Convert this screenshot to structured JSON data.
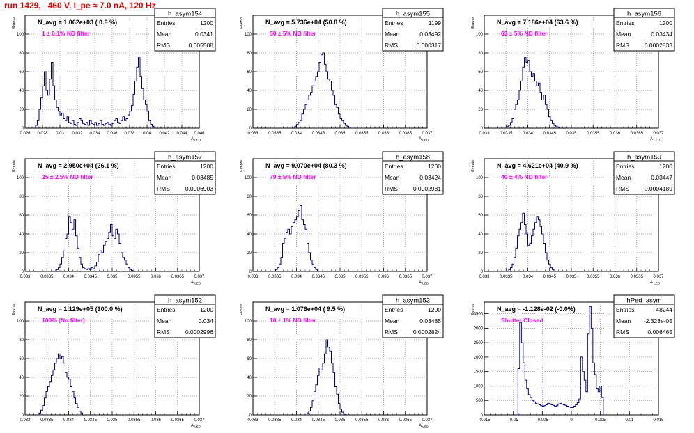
{
  "run_title": "run 1429,   460 V, I_pe ≈ 7.0 nA, 120 Hz",
  "stat_labels": {
    "entries": "Entries",
    "mean": "Mean",
    "rms": "RMS"
  },
  "chart_data": [
    {
      "type": "histogram",
      "name": "h_asym154",
      "navg_label": "N_avg = 1.062e+03 ( 0.9 %)",
      "annotation": "1 ± 0.1% ND filter",
      "entries": "1200",
      "mean": "0.0341",
      "rms": "0.005508",
      "xlabel": "A_LED",
      "ylabel": "Events",
      "xlim": [
        0.026,
        0.046
      ],
      "ylim": [
        0,
        120
      ],
      "xticks": [
        0.026,
        0.028,
        0.03,
        0.032,
        0.034,
        0.036,
        0.038,
        0.04,
        0.042,
        0.044,
        0.046
      ],
      "xtick_labels": [
        "0.026",
        "0.028",
        "0.03",
        "0.032",
        "0.034",
        "0.036",
        "0.038",
        "0.04",
        "0.042",
        "0.044",
        "0.046"
      ],
      "yticks": [
        0,
        20,
        40,
        60,
        80,
        100
      ],
      "ytick_labels": [
        "0",
        "20",
        "40",
        "60",
        "80",
        "100"
      ],
      "bin_start": 0.0272,
      "bin_width": 0.0002,
      "counts": [
        3,
        8,
        20,
        32,
        45,
        60,
        40,
        35,
        52,
        70,
        45,
        30,
        22,
        18,
        14,
        16,
        10,
        8,
        12,
        6,
        5,
        8,
        4,
        3,
        6,
        10,
        8,
        5,
        4,
        6,
        3,
        8,
        5,
        4,
        6,
        3,
        5,
        8,
        4,
        3,
        5,
        6,
        4,
        3,
        5,
        8,
        10,
        6,
        5,
        8,
        12,
        8,
        10,
        14,
        18,
        24,
        36,
        50,
        65,
        75,
        55,
        42,
        30,
        25,
        18,
        8,
        4,
        2
      ]
    },
    {
      "type": "histogram",
      "name": "h_asym155",
      "navg_label": "N_avg = 5.736e+04 (50.8 %)",
      "annotation": "50 ± 5% ND filter",
      "entries": "1199",
      "mean": "0.03492",
      "rms": "0.000317",
      "xlabel": "A_LED",
      "ylabel": "Events",
      "xlim": [
        0.033,
        0.037
      ],
      "ylim": [
        0,
        120
      ],
      "xticks": [
        0.033,
        0.0335,
        0.034,
        0.0345,
        0.035,
        0.0355,
        0.036,
        0.0365,
        0.037
      ],
      "xtick_labels": [
        "0.033",
        "0.0335",
        "0.034",
        "0.0345",
        "0.035",
        "0.0355",
        "0.036",
        "0.0365",
        "0.037"
      ],
      "yticks": [
        0,
        20,
        40,
        60,
        80,
        100
      ],
      "ytick_labels": [
        "0",
        "20",
        "40",
        "60",
        "80",
        "100"
      ],
      "bin_start": 0.03396,
      "bin_width": 4e-05,
      "counts": [
        2,
        4,
        6,
        8,
        15,
        20,
        25,
        30,
        35,
        38,
        45,
        50,
        55,
        60,
        70,
        78,
        80,
        68,
        60,
        52,
        50,
        40,
        35,
        25,
        22,
        15,
        10,
        8,
        5,
        3,
        2,
        1
      ]
    },
    {
      "type": "histogram",
      "name": "h_asym156",
      "navg_label": "N_avg = 7.186e+04 (63.6 %)",
      "annotation": "63 ± 5% ND filter",
      "entries": "1200",
      "mean": "0.03434",
      "rms": "0.0002833",
      "xlabel": "A_LED",
      "ylabel": "Events",
      "xlim": [
        0.033,
        0.037
      ],
      "ylim": [
        0,
        120
      ],
      "xticks": [
        0.033,
        0.0335,
        0.034,
        0.0345,
        0.035,
        0.0355,
        0.036,
        0.0365,
        0.037
      ],
      "xtick_labels": [
        "0.033",
        "0.0335",
        "0.034",
        "0.0345",
        "0.035",
        "0.0355",
        "0.036",
        "0.0365",
        "0.037"
      ],
      "yticks": [
        0,
        20,
        40,
        60,
        80,
        100
      ],
      "ytick_labels": [
        "0",
        "20",
        "40",
        "60",
        "80",
        "100"
      ],
      "bin_start": 0.03352,
      "bin_width": 4e-05,
      "counts": [
        2,
        3,
        6,
        10,
        20,
        25,
        30,
        40,
        50,
        65,
        75,
        70,
        72,
        60,
        55,
        58,
        50,
        45,
        48,
        38,
        30,
        35,
        25,
        20,
        12,
        8,
        5,
        3,
        2,
        1
      ]
    },
    {
      "type": "histogram",
      "name": "h_asym157",
      "navg_label": "N_avg = 2.950e+04 (26.1 %)",
      "annotation": "25 ± 2.5% ND filter",
      "entries": "1200",
      "mean": "0.03485",
      "rms": "0.0006903",
      "xlabel": "A_LED",
      "ylabel": "Events",
      "xlim": [
        0.033,
        0.037
      ],
      "ylim": [
        0,
        120
      ],
      "xticks": [
        0.033,
        0.0335,
        0.034,
        0.0345,
        0.035,
        0.0355,
        0.036,
        0.0365,
        0.037
      ],
      "xtick_labels": [
        "0.033",
        "0.0335",
        "0.034",
        "0.0345",
        "0.035",
        "0.0355",
        "0.036",
        "0.0365",
        "0.037"
      ],
      "yticks": [
        0,
        20,
        40,
        60,
        80,
        100
      ],
      "ytick_labels": [
        "0",
        "20",
        "40",
        "60",
        "80",
        "100"
      ],
      "bin_start": 0.03372,
      "bin_width": 4e-05,
      "counts": [
        2,
        4,
        8,
        15,
        22,
        35,
        40,
        58,
        52,
        45,
        55,
        38,
        25,
        15,
        8,
        4,
        3,
        2,
        3,
        2,
        4,
        3,
        6,
        10,
        18,
        22,
        20,
        28,
        32,
        35,
        42,
        50,
        38,
        35,
        45,
        40,
        30,
        20,
        15,
        12,
        8,
        4,
        2,
        1
      ]
    },
    {
      "type": "histogram",
      "name": "h_asym158",
      "navg_label": "N_avg = 9.070e+04 (80.3 %)",
      "annotation": "79 ± 5% ND filter",
      "entries": "1200",
      "mean": "0.03424",
      "rms": "0.0002981",
      "xlabel": "A_LED",
      "ylabel": "Events",
      "xlim": [
        0.033,
        0.037
      ],
      "ylim": [
        0,
        120
      ],
      "xticks": [
        0.033,
        0.0335,
        0.034,
        0.0345,
        0.035,
        0.0355,
        0.036,
        0.0365,
        0.037
      ],
      "xtick_labels": [
        "0.033",
        "0.0335",
        "0.034",
        "0.0345",
        "0.035",
        "0.0355",
        "0.036",
        "0.0365",
        "0.037"
      ],
      "yticks": [
        0,
        20,
        40,
        60,
        80,
        100
      ],
      "ytick_labels": [
        "0",
        "20",
        "40",
        "60",
        "80",
        "100"
      ],
      "bin_start": 0.03352,
      "bin_width": 4e-05,
      "counts": [
        2,
        4,
        8,
        15,
        30,
        35,
        42,
        45,
        40,
        48,
        52,
        55,
        58,
        65,
        70,
        55,
        50,
        45,
        30,
        20,
        12,
        8,
        4,
        2
      ]
    },
    {
      "type": "histogram",
      "name": "h_asym159",
      "navg_label": "N_avg = 4.621e+04 (40.9 %)",
      "annotation": "40 ± 4% ND filter",
      "entries": "1200",
      "mean": "0.03447",
      "rms": "0.0004189",
      "xlabel": "A_LED",
      "ylabel": "Events",
      "xlim": [
        0.033,
        0.037
      ],
      "ylim": [
        0,
        120
      ],
      "xticks": [
        0.033,
        0.0335,
        0.034,
        0.0345,
        0.035,
        0.0355,
        0.036,
        0.0365,
        0.037
      ],
      "xtick_labels": [
        "0.033",
        "0.0335",
        "0.034",
        "0.0345",
        "0.035",
        "0.0355",
        "0.036",
        "0.0365",
        "0.037"
      ],
      "yticks": [
        0,
        20,
        40,
        60,
        80,
        100
      ],
      "ytick_labels": [
        "0",
        "20",
        "40",
        "60",
        "80",
        "100"
      ],
      "bin_start": 0.03356,
      "bin_width": 4e-05,
      "counts": [
        2,
        4,
        8,
        15,
        25,
        38,
        45,
        52,
        62,
        50,
        40,
        28,
        30,
        38,
        45,
        52,
        58,
        55,
        48,
        40,
        30,
        20,
        12,
        8,
        4,
        2
      ]
    },
    {
      "type": "histogram",
      "name": "h_asym152",
      "navg_label": "N_avg = 1.129e+05 (100.0 %)",
      "annotation": "100% (No filter)",
      "entries": "1200",
      "mean": "0.034",
      "rms": "0.0002996",
      "xlabel": "A_LED",
      "ylabel": "Events",
      "xlim": [
        0.033,
        0.037
      ],
      "ylim": [
        0,
        120
      ],
      "xticks": [
        0.033,
        0.0335,
        0.034,
        0.0345,
        0.035,
        0.0355,
        0.036,
        0.0365,
        0.037
      ],
      "xtick_labels": [
        "0.033",
        "0.0335",
        "0.034",
        "0.0345",
        "0.035",
        "0.0355",
        "0.036",
        "0.0365",
        "0.037"
      ],
      "yticks": [
        0,
        20,
        40,
        60,
        80,
        100
      ],
      "ytick_labels": [
        "0",
        "20",
        "40",
        "60",
        "80",
        "100"
      ],
      "bin_start": 0.03332,
      "bin_width": 4e-05,
      "counts": [
        2,
        5,
        10,
        18,
        25,
        30,
        35,
        42,
        48,
        55,
        60,
        65,
        60,
        62,
        55,
        45,
        40,
        38,
        30,
        25,
        18,
        12,
        8,
        4,
        2
      ]
    },
    {
      "type": "histogram",
      "name": "h_asym153",
      "navg_label": "N_avg = 1.076e+04 ( 9.5 %)",
      "annotation": "10 ± 1% ND filter",
      "entries": "1200",
      "mean": "0.03485",
      "rms": "0.0002824",
      "xlabel": "A_LED",
      "ylabel": "Events",
      "xlim": [
        0.033,
        0.037
      ],
      "ylim": [
        0,
        120
      ],
      "xticks": [
        0.033,
        0.0335,
        0.034,
        0.0345,
        0.035,
        0.0355,
        0.036,
        0.0365,
        0.037
      ],
      "xtick_labels": [
        "0.033",
        "0.0335",
        "0.034",
        "0.0345",
        "0.035",
        "0.0355",
        "0.036",
        "0.0365",
        "0.037"
      ],
      "yticks": [
        0,
        20,
        40,
        60,
        80,
        100
      ],
      "ytick_labels": [
        "0",
        "20",
        "40",
        "60",
        "80",
        "100"
      ],
      "bin_start": 0.03424,
      "bin_width": 4e-05,
      "counts": [
        2,
        4,
        8,
        15,
        25,
        32,
        42,
        50,
        48,
        55,
        65,
        80,
        72,
        68,
        55,
        45,
        30,
        22,
        12,
        6,
        3,
        1
      ]
    },
    {
      "type": "histogram",
      "name": "hPed_asym",
      "navg_label": "N_avg = -1.128e-02 (-0.0%)",
      "annotation": "Shutter Closed",
      "entries": "48244",
      "mean": "-2.323e-05",
      "rms": "0.006465",
      "xlabel": "",
      "ylabel": "Events",
      "xlim": [
        -0.015,
        0.015
      ],
      "ylim": [
        0,
        3900
      ],
      "xticks": [
        -0.015,
        -0.01,
        -0.005,
        0,
        0.005,
        0.01,
        0.015
      ],
      "xtick_labels": [
        "-0.015",
        "-0.01",
        "-0.005",
        "0",
        "0.005",
        "0.01",
        "0.015"
      ],
      "yticks": [
        0,
        500,
        1000,
        1500,
        2000,
        2500,
        3000,
        3500
      ],
      "ytick_labels": [
        "0",
        "500",
        "1000",
        "1500",
        "2000",
        "2500",
        "3000",
        "3500"
      ],
      "bin_start": -0.0095,
      "bin_width": 0.0003,
      "counts": [
        0,
        1600,
        3200,
        2500,
        1800,
        1200,
        900,
        700,
        600,
        500,
        450,
        400,
        380,
        350,
        320,
        300,
        320,
        350,
        400,
        380,
        350,
        330,
        300,
        320,
        380,
        400,
        370,
        350,
        330,
        300,
        280,
        260,
        250,
        300,
        350,
        420,
        550,
        2000,
        1500,
        1200,
        800,
        2800,
        3750,
        3000,
        1800,
        1400,
        900,
        800,
        1000,
        600
      ]
    }
  ]
}
